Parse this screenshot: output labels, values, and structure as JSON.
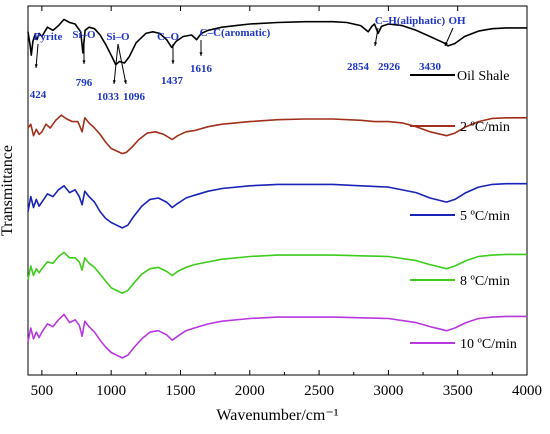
{
  "chart_data": {
    "type": "line",
    "title": "",
    "xlabel": "Wavenumber/cm⁻¹",
    "ylabel": "Transmittance",
    "xlim": [
      400,
      4000
    ],
    "x_ticks": [
      500,
      1000,
      1500,
      2000,
      2500,
      3000,
      3500,
      4000
    ],
    "x_tick_labels": [
      "500",
      "1000",
      "1500",
      "2000",
      "2500",
      "3000",
      "3500",
      "4000"
    ],
    "y_ticks_shown": false,
    "grid": false,
    "legend_placement": "right, next to each curve",
    "series": [
      {
        "name": "Oil Shale",
        "color": "#000000",
        "points": [
          [
            400,
            72
          ],
          [
            415,
            55
          ],
          [
            424,
            42
          ],
          [
            435,
            60
          ],
          [
            450,
            68
          ],
          [
            465,
            62
          ],
          [
            480,
            70
          ],
          [
            500,
            66
          ],
          [
            540,
            78
          ],
          [
            580,
            74
          ],
          [
            620,
            80
          ],
          [
            660,
            88
          ],
          [
            700,
            84
          ],
          [
            740,
            82
          ],
          [
            780,
            72
          ],
          [
            796,
            45
          ],
          [
            812,
            74
          ],
          [
            840,
            78
          ],
          [
            880,
            76
          ],
          [
            920,
            68
          ],
          [
            960,
            56
          ],
          [
            1000,
            42
          ],
          [
            1033,
            30
          ],
          [
            1060,
            34
          ],
          [
            1096,
            32
          ],
          [
            1130,
            40
          ],
          [
            1180,
            58
          ],
          [
            1250,
            70
          ],
          [
            1300,
            72
          ],
          [
            1350,
            70
          ],
          [
            1400,
            62
          ],
          [
            1437,
            52
          ],
          [
            1470,
            60
          ],
          [
            1520,
            66
          ],
          [
            1580,
            68
          ],
          [
            1616,
            62
          ],
          [
            1650,
            70
          ],
          [
            1700,
            74
          ],
          [
            1800,
            78
          ],
          [
            1900,
            80
          ],
          [
            2000,
            82
          ],
          [
            2200,
            84
          ],
          [
            2400,
            85
          ],
          [
            2600,
            85
          ],
          [
            2700,
            84
          ],
          [
            2800,
            80
          ],
          [
            2854,
            72
          ],
          [
            2880,
            79
          ],
          [
            2900,
            82
          ],
          [
            2926,
            70
          ],
          [
            2950,
            79
          ],
          [
            3000,
            82
          ],
          [
            3100,
            80
          ],
          [
            3200,
            74
          ],
          [
            3300,
            66
          ],
          [
            3400,
            58
          ],
          [
            3430,
            54
          ],
          [
            3480,
            57
          ],
          [
            3550,
            66
          ],
          [
            3650,
            73
          ],
          [
            3750,
            76
          ],
          [
            3850,
            77
          ],
          [
            4000,
            77
          ]
        ]
      },
      {
        "name": "2 ºC/min",
        "color": "#a0301c",
        "points": [
          [
            400,
            50
          ],
          [
            420,
            56
          ],
          [
            440,
            38
          ],
          [
            460,
            48
          ],
          [
            480,
            40
          ],
          [
            500,
            44
          ],
          [
            530,
            56
          ],
          [
            560,
            50
          ],
          [
            600,
            62
          ],
          [
            640,
            70
          ],
          [
            680,
            64
          ],
          [
            720,
            60
          ],
          [
            760,
            60
          ],
          [
            790,
            44
          ],
          [
            810,
            66
          ],
          [
            840,
            58
          ],
          [
            880,
            50
          ],
          [
            920,
            40
          ],
          [
            960,
            28
          ],
          [
            1000,
            18
          ],
          [
            1040,
            14
          ],
          [
            1080,
            10
          ],
          [
            1110,
            12
          ],
          [
            1150,
            20
          ],
          [
            1200,
            32
          ],
          [
            1260,
            42
          ],
          [
            1320,
            44
          ],
          [
            1380,
            40
          ],
          [
            1440,
            32
          ],
          [
            1480,
            38
          ],
          [
            1540,
            44
          ],
          [
            1600,
            46
          ],
          [
            1700,
            52
          ],
          [
            1800,
            56
          ],
          [
            2000,
            60
          ],
          [
            2200,
            63
          ],
          [
            2400,
            64
          ],
          [
            2600,
            64
          ],
          [
            2800,
            62
          ],
          [
            2900,
            60
          ],
          [
            3000,
            60
          ],
          [
            3100,
            58
          ],
          [
            3200,
            52
          ],
          [
            3300,
            44
          ],
          [
            3420,
            38
          ],
          [
            3480,
            42
          ],
          [
            3560,
            52
          ],
          [
            3650,
            60
          ],
          [
            3750,
            65
          ],
          [
            3850,
            66
          ],
          [
            4000,
            66
          ]
        ]
      },
      {
        "name": "5 ºC/min",
        "color": "#1a23b8",
        "points": [
          [
            400,
            30
          ],
          [
            420,
            52
          ],
          [
            440,
            36
          ],
          [
            460,
            48
          ],
          [
            480,
            38
          ],
          [
            500,
            44
          ],
          [
            540,
            56
          ],
          [
            580,
            52
          ],
          [
            620,
            62
          ],
          [
            660,
            68
          ],
          [
            700,
            58
          ],
          [
            740,
            62
          ],
          [
            770,
            52
          ],
          [
            790,
            40
          ],
          [
            810,
            60
          ],
          [
            840,
            52
          ],
          [
            880,
            44
          ],
          [
            920,
            30
          ],
          [
            960,
            20
          ],
          [
            1000,
            14
          ],
          [
            1040,
            10
          ],
          [
            1080,
            6
          ],
          [
            1120,
            10
          ],
          [
            1160,
            22
          ],
          [
            1220,
            38
          ],
          [
            1280,
            48
          ],
          [
            1340,
            50
          ],
          [
            1400,
            44
          ],
          [
            1440,
            36
          ],
          [
            1480,
            42
          ],
          [
            1540,
            50
          ],
          [
            1600,
            54
          ],
          [
            1700,
            60
          ],
          [
            1800,
            64
          ],
          [
            2000,
            68
          ],
          [
            2200,
            70
          ],
          [
            2400,
            70
          ],
          [
            2600,
            70
          ],
          [
            2800,
            68
          ],
          [
            3000,
            66
          ],
          [
            3200,
            58
          ],
          [
            3300,
            50
          ],
          [
            3420,
            44
          ],
          [
            3480,
            48
          ],
          [
            3560,
            58
          ],
          [
            3650,
            66
          ],
          [
            3750,
            70
          ],
          [
            3850,
            71
          ],
          [
            4000,
            71
          ]
        ]
      },
      {
        "name": "8 ºC/min",
        "color": "#3dcc1a",
        "points": [
          [
            400,
            30
          ],
          [
            420,
            50
          ],
          [
            440,
            36
          ],
          [
            460,
            46
          ],
          [
            480,
            40
          ],
          [
            500,
            46
          ],
          [
            540,
            56
          ],
          [
            580,
            54
          ],
          [
            620,
            64
          ],
          [
            660,
            70
          ],
          [
            700,
            62
          ],
          [
            740,
            62
          ],
          [
            770,
            56
          ],
          [
            790,
            44
          ],
          [
            810,
            62
          ],
          [
            840,
            54
          ],
          [
            880,
            48
          ],
          [
            920,
            38
          ],
          [
            960,
            28
          ],
          [
            1000,
            18
          ],
          [
            1040,
            14
          ],
          [
            1080,
            10
          ],
          [
            1120,
            14
          ],
          [
            1160,
            24
          ],
          [
            1220,
            38
          ],
          [
            1280,
            46
          ],
          [
            1340,
            48
          ],
          [
            1400,
            42
          ],
          [
            1440,
            36
          ],
          [
            1480,
            42
          ],
          [
            1540,
            48
          ],
          [
            1600,
            52
          ],
          [
            1700,
            56
          ],
          [
            1800,
            60
          ],
          [
            2000,
            64
          ],
          [
            2200,
            66
          ],
          [
            2400,
            66
          ],
          [
            2600,
            66
          ],
          [
            2800,
            65
          ],
          [
            3000,
            64
          ],
          [
            3200,
            58
          ],
          [
            3300,
            52
          ],
          [
            3420,
            46
          ],
          [
            3480,
            50
          ],
          [
            3560,
            58
          ],
          [
            3650,
            64
          ],
          [
            3750,
            66
          ],
          [
            3850,
            67
          ],
          [
            4000,
            67
          ]
        ]
      },
      {
        "name": "10 ºC/min",
        "color": "#b838e0",
        "points": [
          [
            400,
            30
          ],
          [
            420,
            50
          ],
          [
            440,
            34
          ],
          [
            460,
            44
          ],
          [
            480,
            36
          ],
          [
            500,
            44
          ],
          [
            540,
            56
          ],
          [
            580,
            52
          ],
          [
            620,
            62
          ],
          [
            660,
            70
          ],
          [
            700,
            58
          ],
          [
            740,
            62
          ],
          [
            770,
            54
          ],
          [
            790,
            38
          ],
          [
            810,
            60
          ],
          [
            840,
            52
          ],
          [
            880,
            44
          ],
          [
            920,
            32
          ],
          [
            960,
            22
          ],
          [
            1000,
            14
          ],
          [
            1040,
            10
          ],
          [
            1080,
            6
          ],
          [
            1120,
            10
          ],
          [
            1160,
            20
          ],
          [
            1220,
            34
          ],
          [
            1280,
            44
          ],
          [
            1340,
            46
          ],
          [
            1400,
            40
          ],
          [
            1440,
            32
          ],
          [
            1480,
            38
          ],
          [
            1540,
            46
          ],
          [
            1600,
            50
          ],
          [
            1700,
            56
          ],
          [
            1800,
            60
          ],
          [
            2000,
            64
          ],
          [
            2200,
            66
          ],
          [
            2400,
            66
          ],
          [
            2600,
            66
          ],
          [
            2800,
            65
          ],
          [
            3000,
            64
          ],
          [
            3200,
            58
          ],
          [
            3300,
            52
          ],
          [
            3420,
            46
          ],
          [
            3480,
            50
          ],
          [
            3560,
            58
          ],
          [
            3650,
            64
          ],
          [
            3750,
            66
          ],
          [
            3850,
            67
          ],
          [
            4000,
            67
          ]
        ]
      }
    ],
    "annotations": [
      {
        "text": "Pyrite",
        "x": 424,
        "series": 0
      },
      {
        "text": "424",
        "x": 424,
        "series": 0
      },
      {
        "text": "Si–O",
        "x": 796,
        "series": 0
      },
      {
        "text": "796",
        "x": 796,
        "series": 0
      },
      {
        "text": "Si–O",
        "x": 1096,
        "series": 0
      },
      {
        "text": "1033",
        "x": 1033,
        "series": 0
      },
      {
        "text": "1096",
        "x": 1096,
        "series": 0
      },
      {
        "text": "C–O",
        "x": 1437,
        "series": 0
      },
      {
        "text": "1437",
        "x": 1437,
        "series": 0
      },
      {
        "text": "C–C(aromatic)",
        "x": 1616,
        "series": 0
      },
      {
        "text": "1616",
        "x": 1616,
        "series": 0
      },
      {
        "text": "C–H(aliphatic)",
        "x": 2900,
        "series": 0
      },
      {
        "text": "OH",
        "x": 3430,
        "series": 0
      },
      {
        "text": "2854",
        "x": 2854,
        "series": 0
      },
      {
        "text": "2926",
        "x": 2926,
        "series": 0
      },
      {
        "text": "3430",
        "x": 3430,
        "series": 0
      }
    ]
  }
}
